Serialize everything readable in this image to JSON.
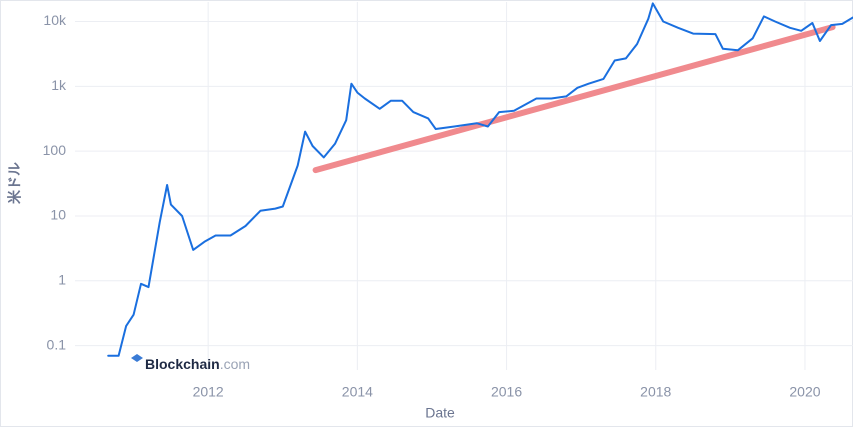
{
  "chart_data": {
    "type": "line",
    "xlabel": "Date",
    "ylabel": "米ドル",
    "watermark": {
      "name": "Blockchain",
      "suffix": ".com"
    },
    "log_y": true,
    "grid": true,
    "xlim": [
      2010.215,
      2020.644
    ],
    "xticks": [
      2012,
      2014,
      2016,
      2018,
      2020
    ],
    "ylim": [
      0.06,
      20000
    ],
    "yticks": [
      0.1,
      1,
      10,
      100,
      {
        "value": 1000,
        "label": "1k"
      },
      {
        "value": 10000,
        "label": "10k"
      }
    ],
    "series": [
      {
        "color": "#1a6fdf",
        "x": [
          2010.66,
          2010.8,
          2010.9,
          2011.0,
          2011.1,
          2011.2,
          2011.35,
          2011.45,
          2011.5,
          2011.65,
          2011.8,
          2011.95,
          2012.1,
          2012.3,
          2012.5,
          2012.7,
          2012.9,
          2013.0,
          2013.2,
          2013.3,
          2013.4,
          2013.55,
          2013.7,
          2013.85,
          2013.92,
          2014.0,
          2014.1,
          2014.3,
          2014.45,
          2014.6,
          2014.75,
          2014.95,
          2015.05,
          2015.3,
          2015.6,
          2015.75,
          2015.9,
          2016.1,
          2016.4,
          2016.6,
          2016.8,
          2016.95,
          2017.1,
          2017.3,
          2017.45,
          2017.6,
          2017.75,
          2017.9,
          2017.96,
          2018.1,
          2018.3,
          2018.5,
          2018.8,
          2018.9,
          2019.1,
          2019.3,
          2019.45,
          2019.6,
          2019.8,
          2019.95,
          2020.1,
          2020.2,
          2020.35,
          2020.5,
          2020.64
        ],
        "values": [
          0.07,
          0.07,
          0.2,
          0.3,
          0.9,
          0.8,
          8,
          30,
          15,
          10,
          3,
          4,
          5,
          5,
          7,
          12,
          13,
          14,
          60,
          200,
          120,
          80,
          130,
          300,
          1100,
          800,
          650,
          450,
          600,
          600,
          400,
          320,
          220,
          240,
          270,
          240,
          400,
          420,
          650,
          650,
          700,
          950,
          1100,
          1300,
          2500,
          2700,
          4500,
          11000,
          19000,
          10000,
          8000,
          6500,
          6400,
          3800,
          3600,
          5500,
          12000,
          10000,
          8000,
          7200,
          9500,
          5000,
          8800,
          9200,
          11500
        ]
      },
      {
        "color": "#f08a8e",
        "x": [
          2013.44,
          2020.37
        ],
        "values": [
          51,
          8200
        ]
      }
    ]
  }
}
